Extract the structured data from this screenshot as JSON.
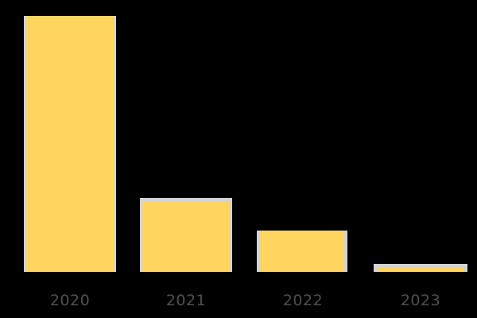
{
  "chart_data": {
    "type": "bar",
    "categories": [
      "2020",
      "2021",
      "2022",
      "2023"
    ],
    "values": [
      100,
      29,
      16,
      3
    ],
    "title": "",
    "xlabel": "",
    "ylabel": "",
    "ylim": [
      0,
      100
    ],
    "grid": false,
    "legend": false,
    "axis_lines": false,
    "bar_color": "#FFD45F",
    "bar_outline_color": "#D3D3D3",
    "tick_label_color": "#4F4F4F",
    "background_color": "#000000"
  }
}
